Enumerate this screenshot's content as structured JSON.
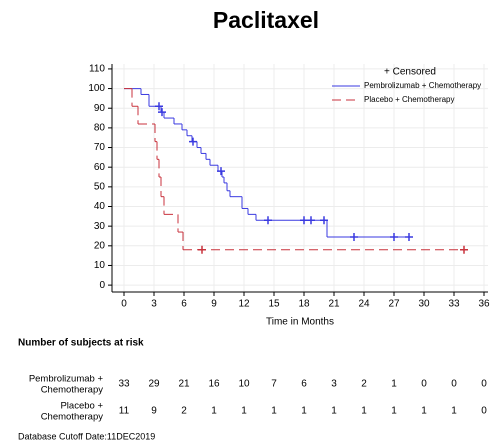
{
  "chart_data": {
    "type": "km",
    "title": "Paclitaxel",
    "x_label": "Time in Months",
    "xlim": [
      -1.2,
      36.4
    ],
    "ylim": [
      -3.5,
      112.5
    ],
    "xticks": [
      0,
      3,
      6,
      9,
      12,
      15,
      18,
      21,
      24,
      27,
      30,
      33,
      36
    ],
    "yticks": [
      0,
      10,
      20,
      30,
      40,
      50,
      60,
      70,
      80,
      90,
      100,
      110
    ],
    "grid": true,
    "legend_title": "+ Censored",
    "legend_position": "top-right",
    "series": [
      {
        "name": "Pembrolizumab + Chemotherapy",
        "color": "#3a3ae0",
        "dash": false,
        "x": [
          0,
          1.7,
          2.5,
          3.7,
          4.0,
          5.0,
          5.8,
          6.3,
          6.8,
          7.3,
          7.7,
          8.2,
          8.6,
          9.4,
          9.8,
          10.0,
          10.3,
          10.6,
          11.8,
          12.4,
          13.2,
          20.3,
          28.5
        ],
        "values": [
          100,
          97,
          91,
          88,
          85,
          82,
          79,
          76,
          73,
          70,
          67,
          64,
          61,
          58,
          55,
          52,
          48,
          45,
          39,
          36,
          33,
          24.5,
          24.5
        ],
        "censored_x": [
          3.5,
          3.8,
          6.9,
          9.7,
          14.4,
          18,
          18.7,
          20,
          23,
          27,
          28.5
        ],
        "censored_values": [
          91,
          88,
          73,
          58,
          33,
          33,
          33,
          33,
          24.5,
          24.5,
          24.5
        ]
      },
      {
        "name": "Placebo + Chemotherapy",
        "color": "#c8323c",
        "dash": true,
        "x": [
          0,
          0.8,
          1.4,
          3.1,
          3.3,
          3.5,
          3.7,
          4.0,
          5.4,
          5.9,
          34
        ],
        "values": [
          100,
          91,
          82,
          73,
          64,
          55,
          45,
          36,
          27,
          18,
          18
        ],
        "censored_x": [
          7.8,
          34
        ],
        "censored_values": [
          18,
          18
        ]
      }
    ],
    "risk_table": {
      "title": "Number of subjects at risk",
      "rows": [
        {
          "label_lines": [
            "Pembrolizumab +",
            "Chemotherapy"
          ],
          "values": [
            33,
            29,
            21,
            16,
            10,
            7,
            6,
            3,
            2,
            1,
            0,
            0,
            0
          ]
        },
        {
          "label_lines": [
            "Placebo +",
            "Chemotherapy"
          ],
          "values": [
            11,
            9,
            2,
            1,
            1,
            1,
            1,
            1,
            1,
            1,
            1,
            1,
            0
          ]
        }
      ]
    },
    "footnote": "Database Cutoff Date:11DEC2019"
  }
}
